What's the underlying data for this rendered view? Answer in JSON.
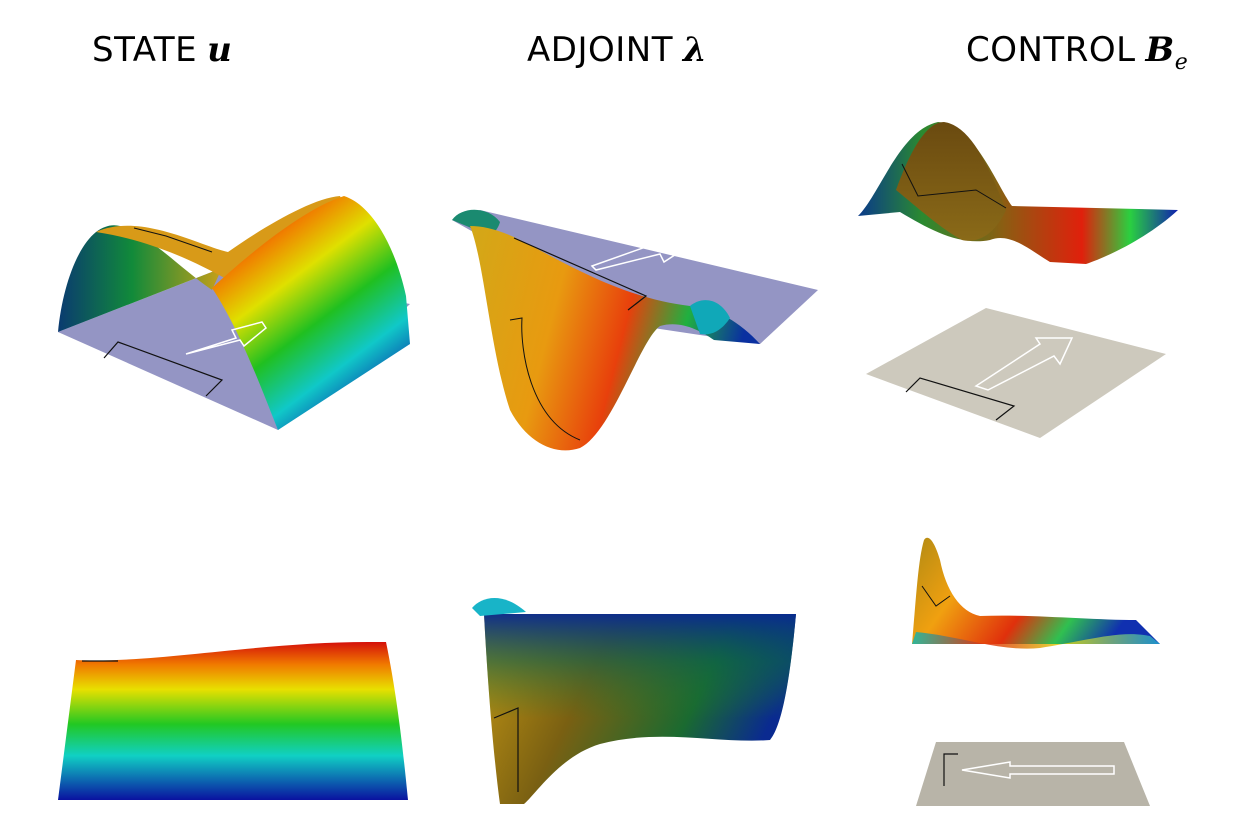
{
  "headers": {
    "state": {
      "label": "STATE",
      "symbol": "u"
    },
    "adjoint": {
      "label": "ADJOINT",
      "symbol": "λ"
    },
    "control": {
      "label": "CONTROL",
      "symbol": "B",
      "subscript": "e"
    }
  },
  "colors": {
    "plane_blue": "#9495c4",
    "plane_gray": "#cdc9bd",
    "plane_gray_dark": "#b8b4a8",
    "red": "#e01a0c",
    "orange": "#f0a000",
    "yellow": "#e6e000",
    "green": "#1ec81e",
    "cyan": "#10d2c8",
    "blue": "#0a14a0",
    "olive": "#8a6a10",
    "dark_green": "#0f5a3c"
  }
}
